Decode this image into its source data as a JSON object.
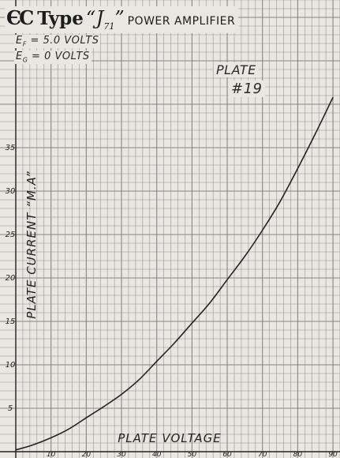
{
  "header": {
    "logo_text": "ЄC",
    "type_word": "Type",
    "model_prefix": "“J",
    "model_number": "71",
    "model_suffix": "”",
    "amplifier_label": "POWER AMPLIFIER"
  },
  "conditions": {
    "filament_symbol": "E",
    "filament_sub": "F",
    "filament_value": " = 5.0 VOLTS",
    "grid_symbol": "E",
    "grid_sub": "G",
    "grid_value": " = 0 VOLTS"
  },
  "plate": {
    "label": "PLATE",
    "number": "#19"
  },
  "chart_data": {
    "type": "line",
    "title": "Type “J71” POWER AMPLIFIER",
    "xlabel": "PLATE VOLTAGE",
    "ylabel": "PLATE CURRENT “M.A”",
    "xlim": [
      0,
      92
    ],
    "ylim": [
      0,
      52
    ],
    "xticks": [
      10,
      20,
      30,
      40,
      50,
      60,
      70,
      80,
      90
    ],
    "yticks": [
      5,
      10,
      15,
      20,
      25,
      30,
      35
    ],
    "grid": true,
    "series": [
      {
        "x": [
          0,
          5,
          10,
          15,
          20,
          25,
          30,
          35,
          40,
          45,
          50,
          55,
          60,
          65,
          70,
          75,
          80,
          85,
          90
        ],
        "y": [
          0.2,
          0.8,
          1.6,
          2.6,
          3.9,
          5.2,
          6.6,
          8.3,
          10.4,
          12.5,
          14.8,
          17.1,
          19.8,
          22.5,
          25.5,
          28.8,
          32.6,
          36.6,
          40.8
        ]
      }
    ]
  },
  "colors": {
    "paper": "#e8e7e2",
    "grid": "#7c7c7c",
    "ink": "#232323"
  }
}
